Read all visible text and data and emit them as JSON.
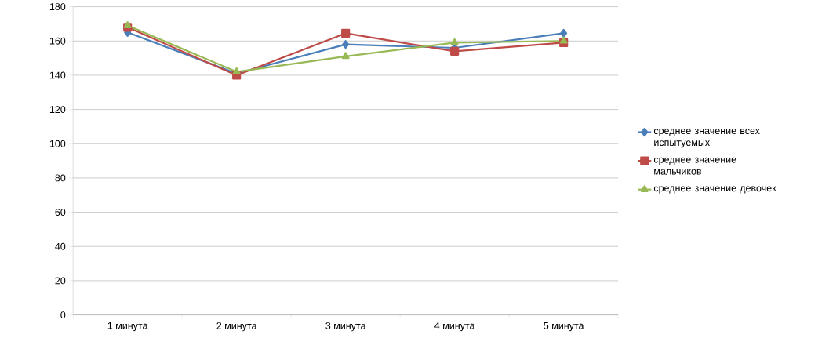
{
  "chart_data": {
    "type": "line",
    "categories": [
      "1 минута",
      "2 минута",
      "3 минута",
      "4 минута",
      "5 минута"
    ],
    "series": [
      {
        "name": "среднее значение всех испытуемых",
        "color": "#4a7ebb",
        "marker": "diamond",
        "values": [
          165,
          141,
          158,
          156,
          164.5
        ]
      },
      {
        "name": "среднее значение мальчиков",
        "color": "#be4b48",
        "marker": "square",
        "values": [
          168,
          140,
          164.5,
          154,
          159
        ]
      },
      {
        "name": "среднее значение девочек",
        "color": "#98b954",
        "marker": "triangle",
        "values": [
          169,
          142,
          151,
          159,
          160
        ]
      }
    ],
    "ylim": [
      0,
      180
    ],
    "yticks": [
      0,
      20,
      40,
      60,
      80,
      100,
      120,
      140,
      160,
      180
    ],
    "grid": "y",
    "legend": "right"
  }
}
